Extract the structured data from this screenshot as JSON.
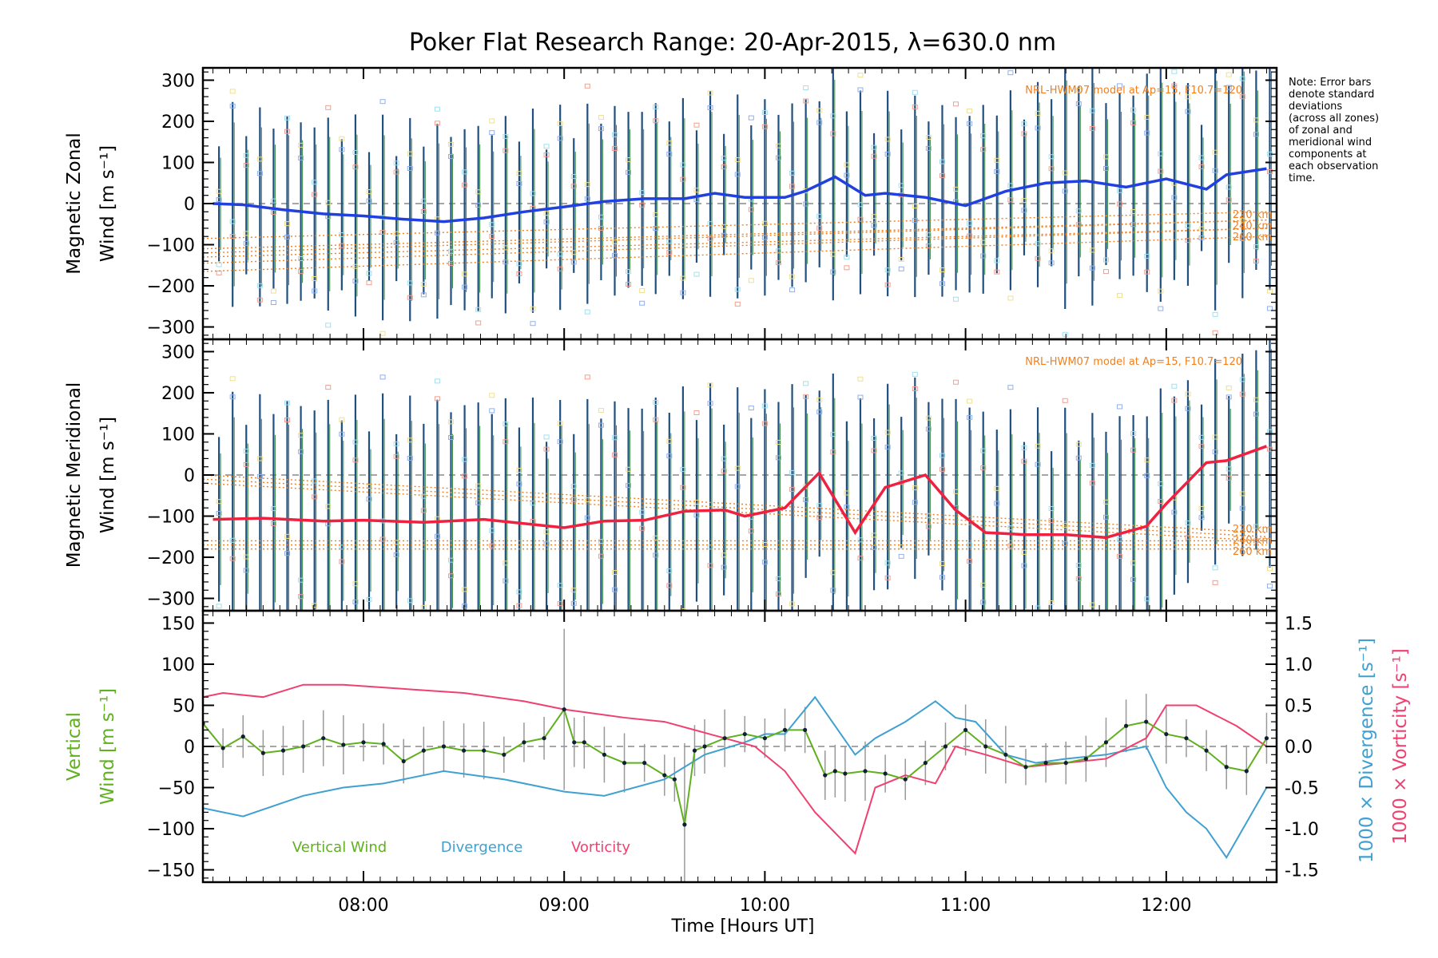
{
  "title": "Poker Flat Research Range: 20-Apr-2015, λ=630.0 nm",
  "note": [
    "Note: Error bars",
    "denote standard",
    "deviations",
    "(across all zones)",
    "of zonal and",
    "meridional wind",
    "components at",
    "each observation",
    "time."
  ],
  "model_label": "NRL-HWM07 model at Ap=15, F10.7=120",
  "altitudes": [
    "220 km",
    "240 km",
    "260 km"
  ],
  "xlabel": "Time [Hours UT]",
  "colors": {
    "zonal": "#2040e0",
    "meridional": "#f02040",
    "vertical": "#60b020",
    "divergence": "#40a0d0",
    "vorticity": "#f04070",
    "model": "#f08020",
    "errorbar": "#205080"
  },
  "chart_data": [
    {
      "type": "line",
      "panel": "zonal",
      "ylabel": [
        "Magnetic Zonal",
        "Wind [m s⁻¹]"
      ],
      "ylim": [
        -330,
        330
      ],
      "yticks": [
        300,
        200,
        100,
        0,
        -100,
        -200,
        -300
      ],
      "xlim": [
        7.2,
        12.55
      ],
      "series": [
        {
          "x": [
            7.25,
            7.4,
            7.6,
            7.8,
            8.0,
            8.2,
            8.4,
            8.6,
            8.8,
            9.0,
            9.2,
            9.4,
            9.6,
            9.75,
            9.9,
            10.1,
            10.2,
            10.35,
            10.5,
            10.6,
            10.8,
            11.0,
            11.2,
            11.4,
            11.6,
            11.8,
            12.0,
            12.2,
            12.3,
            12.5
          ],
          "values": [
            0,
            -3,
            -15,
            -25,
            -30,
            -38,
            -44,
            -35,
            -20,
            -8,
            5,
            12,
            12,
            25,
            15,
            15,
            30,
            65,
            20,
            25,
            15,
            -5,
            30,
            50,
            55,
            40,
            60,
            35,
            70,
            85
          ]
        }
      ],
      "model": [
        [
          7.2,
          -120,
          -85
        ],
        [
          7.2,
          -145,
          -110
        ],
        [
          7.2,
          -165,
          -130
        ],
        [
          12.5,
          -40,
          -20
        ],
        [
          12.5,
          -60,
          -40
        ],
        [
          12.5,
          -80,
          -60
        ]
      ]
    },
    {
      "type": "line",
      "panel": "meridional",
      "ylabel": [
        "Magnetic Meridional",
        "Wind [m s⁻¹]"
      ],
      "ylim": [
        -330,
        330
      ],
      "yticks": [
        300,
        200,
        100,
        0,
        -100,
        -200,
        -300
      ],
      "xlim": [
        7.2,
        12.55
      ],
      "series": [
        {
          "x": [
            7.25,
            7.5,
            7.8,
            8.0,
            8.3,
            8.6,
            9.0,
            9.2,
            9.4,
            9.6,
            9.8,
            9.9,
            10.1,
            10.27,
            10.45,
            10.6,
            10.8,
            10.95,
            11.1,
            11.3,
            11.5,
            11.7,
            11.9,
            12.0,
            12.2,
            12.3,
            12.5
          ],
          "values": [
            -108,
            -105,
            -112,
            -110,
            -115,
            -108,
            -128,
            -112,
            -110,
            -88,
            -85,
            -100,
            -80,
            5,
            -140,
            -30,
            0,
            -85,
            -140,
            -145,
            -145,
            -152,
            -125,
            -70,
            30,
            35,
            70
          ]
        }
      ],
      "model": [
        [
          7.2,
          0,
          -160
        ],
        [
          7.2,
          -10,
          -170
        ],
        [
          7.2,
          -20,
          -180
        ],
        [
          12.5,
          -140,
          -160
        ],
        [
          12.5,
          -150,
          -170
        ],
        [
          12.5,
          -160,
          -180
        ]
      ]
    },
    {
      "type": "line",
      "panel": "vertical",
      "ylabel": [
        "Vertical",
        "Wind [m s⁻¹]"
      ],
      "ylim": [
        -165,
        165
      ],
      "yticks": [
        150,
        100,
        50,
        0,
        -50,
        -100,
        -150
      ],
      "y2label": [
        "1000 × Divergence [s⁻¹]",
        "1000 × Vorticity [s⁻¹]"
      ],
      "y2lim": [
        -1.65,
        1.65
      ],
      "y2ticks": [
        1.5,
        1.0,
        0.5,
        0.0,
        -0.5,
        -1.0,
        -1.5
      ],
      "xlim": [
        7.2,
        12.55
      ],
      "xticks": [
        "08:00",
        "09:00",
        "10:00",
        "11:00",
        "12:00"
      ],
      "xtick_values": [
        8,
        9,
        10,
        11,
        12
      ],
      "legend": [
        "Vertical Wind",
        "Divergence",
        "Vorticity"
      ],
      "series": [
        {
          "name": "Vertical Wind",
          "x": [
            7.2,
            7.3,
            7.4,
            7.5,
            7.6,
            7.7,
            7.8,
            7.9,
            8.0,
            8.1,
            8.2,
            8.3,
            8.4,
            8.5,
            8.6,
            8.7,
            8.8,
            8.9,
            9.0,
            9.05,
            9.1,
            9.2,
            9.3,
            9.4,
            9.5,
            9.55,
            9.6,
            9.65,
            9.7,
            9.8,
            9.9,
            10.0,
            10.1,
            10.2,
            10.3,
            10.35,
            10.4,
            10.5,
            10.6,
            10.7,
            10.8,
            10.9,
            11.0,
            11.1,
            11.2,
            11.3,
            11.4,
            11.5,
            11.6,
            11.7,
            11.8,
            11.9,
            12.0,
            12.1,
            12.2,
            12.3,
            12.4,
            12.5
          ],
          "values": [
            28,
            -2,
            12,
            -8,
            -5,
            0,
            10,
            2,
            5,
            3,
            -18,
            -5,
            0,
            -5,
            -5,
            -10,
            5,
            10,
            45,
            5,
            5,
            -10,
            -20,
            -20,
            -35,
            -40,
            -95,
            -5,
            0,
            10,
            15,
            10,
            20,
            20,
            -35,
            -30,
            -33,
            -30,
            -33,
            -40,
            -20,
            0,
            20,
            0,
            -10,
            -25,
            -20,
            -20,
            -15,
            5,
            25,
            30,
            15,
            10,
            -5,
            -25,
            -30,
            10
          ],
          "ypoints": true
        },
        {
          "name": "Divergence",
          "x": [
            7.2,
            7.4,
            7.7,
            7.9,
            8.1,
            8.4,
            8.7,
            9.0,
            9.2,
            9.5,
            9.7,
            9.9,
            10.0,
            10.1,
            10.25,
            10.45,
            10.55,
            10.7,
            10.85,
            10.95,
            11.05,
            11.2,
            11.35,
            11.5,
            11.7,
            11.9,
            12.0,
            12.1,
            12.2,
            12.3,
            12.5
          ],
          "values": [
            -0.75,
            -0.85,
            -0.6,
            -0.5,
            -0.45,
            -0.3,
            -0.4,
            -0.55,
            -0.6,
            -0.4,
            -0.1,
            0.05,
            0.15,
            0.15,
            0.6,
            -0.1,
            0.1,
            0.3,
            0.55,
            0.35,
            0.3,
            -0.1,
            -0.2,
            -0.15,
            -0.1,
            0.0,
            -0.5,
            -0.8,
            -1.0,
            -1.35,
            -0.5
          ]
        },
        {
          "name": "Vorticity",
          "x": [
            7.2,
            7.3,
            7.5,
            7.7,
            7.9,
            8.2,
            8.5,
            8.8,
            9.0,
            9.3,
            9.5,
            9.65,
            9.8,
            9.95,
            10.1,
            10.25,
            10.45,
            10.55,
            10.7,
            10.85,
            10.95,
            11.1,
            11.3,
            11.5,
            11.7,
            11.9,
            12.0,
            12.15,
            12.35,
            12.5
          ],
          "values": [
            0.6,
            0.65,
            0.6,
            0.75,
            0.75,
            0.7,
            0.65,
            0.55,
            0.45,
            0.35,
            0.3,
            0.2,
            0.1,
            0.0,
            -0.3,
            -0.8,
            -1.3,
            -0.5,
            -0.35,
            -0.45,
            0.0,
            -0.1,
            -0.25,
            -0.2,
            -0.15,
            0.1,
            0.5,
            0.5,
            0.25,
            0.0
          ]
        }
      ]
    }
  ]
}
